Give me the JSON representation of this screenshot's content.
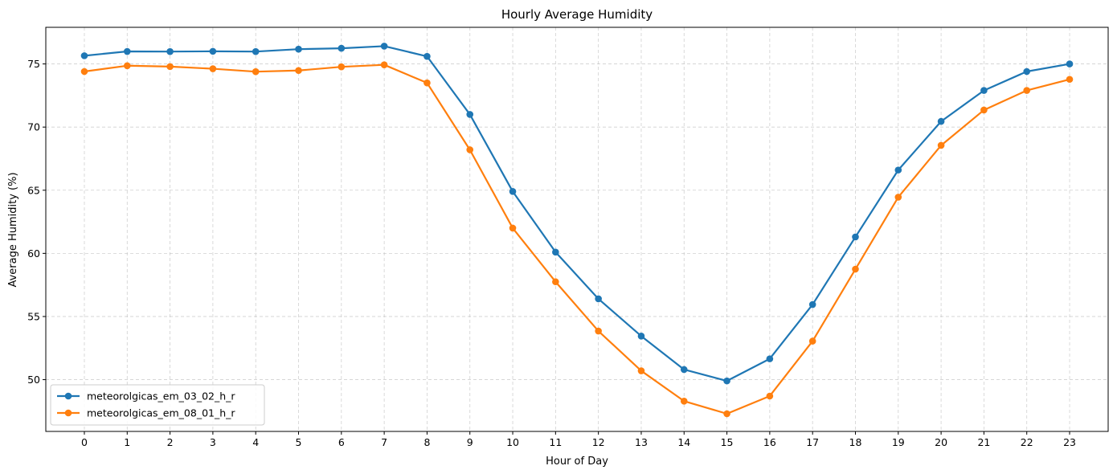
{
  "chart_data": {
    "type": "line",
    "title": "Hourly Average Humidity",
    "xlabel": "Hour of Day",
    "ylabel": "Average Humidity (%)",
    "x": [
      0,
      1,
      2,
      3,
      4,
      5,
      6,
      7,
      8,
      9,
      10,
      11,
      12,
      13,
      14,
      15,
      16,
      17,
      18,
      19,
      20,
      21,
      22,
      23
    ],
    "xlim": [
      -0.9,
      23.9
    ],
    "ylim": [
      45.9,
      77.9
    ],
    "yticks": [
      50,
      55,
      60,
      65,
      70,
      75
    ],
    "grid": true,
    "legend_position": "lower-left",
    "series": [
      {
        "name": "meteorolgicas_em_03_02_h_r",
        "color": "#1f77b4",
        "marker": "circle",
        "values": [
          75.65,
          75.99,
          75.98,
          76.0,
          75.98,
          76.17,
          76.24,
          76.41,
          75.6,
          71.0,
          64.9,
          60.1,
          56.4,
          53.45,
          50.8,
          49.9,
          51.65,
          55.95,
          61.3,
          66.6,
          70.45,
          72.9,
          74.4,
          75.0
        ]
      },
      {
        "name": "meteorolgicas_em_08_01_h_r",
        "color": "#ff7f0e",
        "marker": "circle",
        "values": [
          74.4,
          74.86,
          74.79,
          74.62,
          74.39,
          74.48,
          74.77,
          74.93,
          73.5,
          68.2,
          62.0,
          57.75,
          53.85,
          50.7,
          48.3,
          47.3,
          48.7,
          53.05,
          58.75,
          64.45,
          68.55,
          71.35,
          72.9,
          73.78
        ]
      }
    ]
  }
}
